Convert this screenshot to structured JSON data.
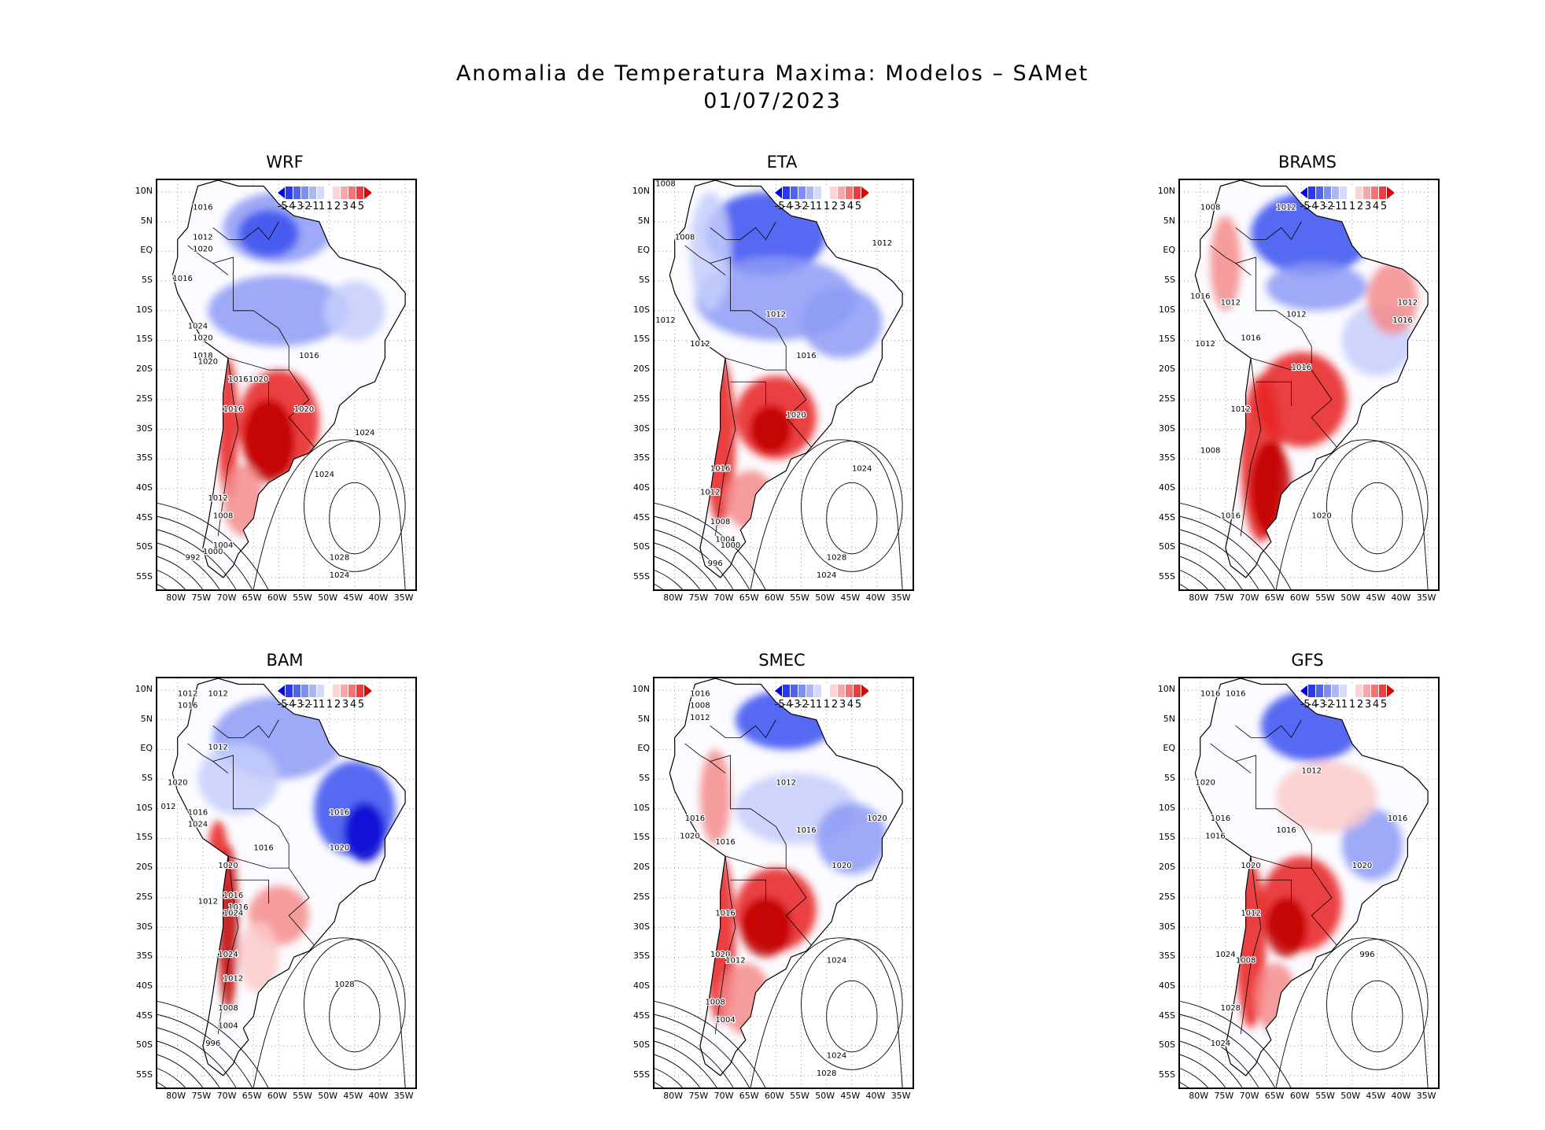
{
  "title": {
    "line1": "Anomalia de Temperatura Maxima: Modelos – SAMet",
    "line2": "01/07/2023"
  },
  "axes": {
    "lat_labels": [
      "10N",
      "5N",
      "EQ",
      "5S",
      "10S",
      "15S",
      "20S",
      "25S",
      "30S",
      "35S",
      "40S",
      "45S",
      "50S",
      "55S"
    ],
    "lon_labels": [
      "80W",
      "75W",
      "70W",
      "65W",
      "60W",
      "55W",
      "50W",
      "45W",
      "40W",
      "35W"
    ]
  },
  "legend": {
    "ticks": [
      "-5",
      "-4",
      "-3",
      "-2",
      "-1",
      "1",
      "1",
      "2",
      "3",
      "4",
      "5"
    ],
    "colors": [
      "#0000ee",
      "#2a3af0",
      "#4c63f3",
      "#7d8ff6",
      "#a9b6fa",
      "#d3dafd",
      "#ffffff",
      "#fdd3d3",
      "#fba6a6",
      "#f77373",
      "#f23d3d",
      "#e50000"
    ]
  },
  "panels": [
    {
      "name": "WRF",
      "isobars": [
        "1016",
        "1012",
        "1020",
        "1016",
        "1024",
        "1020",
        "1018",
        "1020",
        "1016",
        "1016",
        "1020",
        "1020",
        "1016",
        "1024",
        "1024",
        "1012",
        "1008",
        "1004",
        "1000",
        "992",
        "1028",
        "1024"
      ]
    },
    {
      "name": "ETA",
      "isobars": [
        "1008",
        "1012",
        "1008",
        "1012",
        "1012",
        "1016",
        "1012",
        "1016",
        "1020",
        "1024",
        "1012",
        "1008",
        "1004",
        "1000",
        "996",
        "1028",
        "1024"
      ]
    },
    {
      "name": "BRAMS",
      "isobars": [
        "1008",
        "1012",
        "1016",
        "1012",
        "1012",
        "1016",
        "1012",
        "1016",
        "1016",
        "1012",
        "1012",
        "1008",
        "1016",
        "1020"
      ]
    },
    {
      "name": "BAM",
      "isobars": [
        "1012",
        "1012",
        "1016",
        "1012",
        "1020",
        "012",
        "1016",
        "1024",
        "1016",
        "1016",
        "1020",
        "1020",
        "1016",
        "1012",
        "1016",
        "1024",
        "1024",
        "1012",
        "1028",
        "1008",
        "1004",
        "996"
      ]
    },
    {
      "name": "SMEC",
      "isobars": [
        "1016",
        "1008",
        "1012",
        "1012",
        "1016",
        "1016",
        "1020",
        "1016",
        "1020",
        "1020",
        "1016",
        "1020",
        "1012",
        "1024",
        "1008",
        "1004",
        "1024",
        "1028"
      ]
    },
    {
      "name": "GFS",
      "isobars": [
        "1016",
        "1016",
        "1012",
        "1020",
        "1016",
        "1016",
        "1016",
        "1020",
        "1016",
        "1020",
        "1012",
        "1024",
        "1008",
        "996",
        "1028",
        "1024"
      ]
    }
  ],
  "panel_isobar_positions_note": ""
}
